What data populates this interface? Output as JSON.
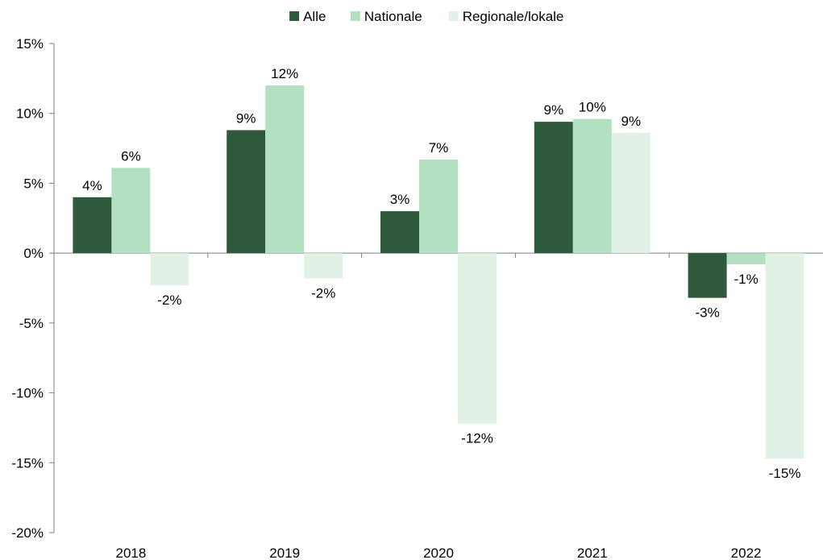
{
  "chart_data": {
    "type": "bar",
    "categories": [
      "2018",
      "2019",
      "2020",
      "2021",
      "2022"
    ],
    "series": [
      {
        "name": "Alle",
        "values": [
          4.0,
          8.8,
          3.0,
          9.4,
          -3.2
        ],
        "labels": [
          "4%",
          "9%",
          "3%",
          "9%",
          "-3%"
        ],
        "color": "#2e5a3b"
      },
      {
        "name": "Nationale",
        "values": [
          6.1,
          12.0,
          6.7,
          9.6,
          -0.8
        ],
        "labels": [
          "6%",
          "12%",
          "7%",
          "10%",
          "-1%"
        ],
        "color": "#b3e0c0"
      },
      {
        "name": "Regionale/lokale",
        "values": [
          -2.3,
          -1.8,
          -12.2,
          8.6,
          -14.7
        ],
        "labels": [
          "-2%",
          "-2%",
          "-12%",
          "9%",
          "-15%"
        ],
        "color": "#dff2e5"
      }
    ],
    "ylim": [
      -20,
      15
    ],
    "yticks": [
      15,
      10,
      5,
      0,
      -5,
      -10,
      -15,
      -20
    ],
    "ytick_labels": [
      "15%",
      "10%",
      "5%",
      "0%",
      "-5%",
      "-10%",
      "-15%",
      "-20%"
    ],
    "grid": false,
    "legend_position": "top-center"
  }
}
